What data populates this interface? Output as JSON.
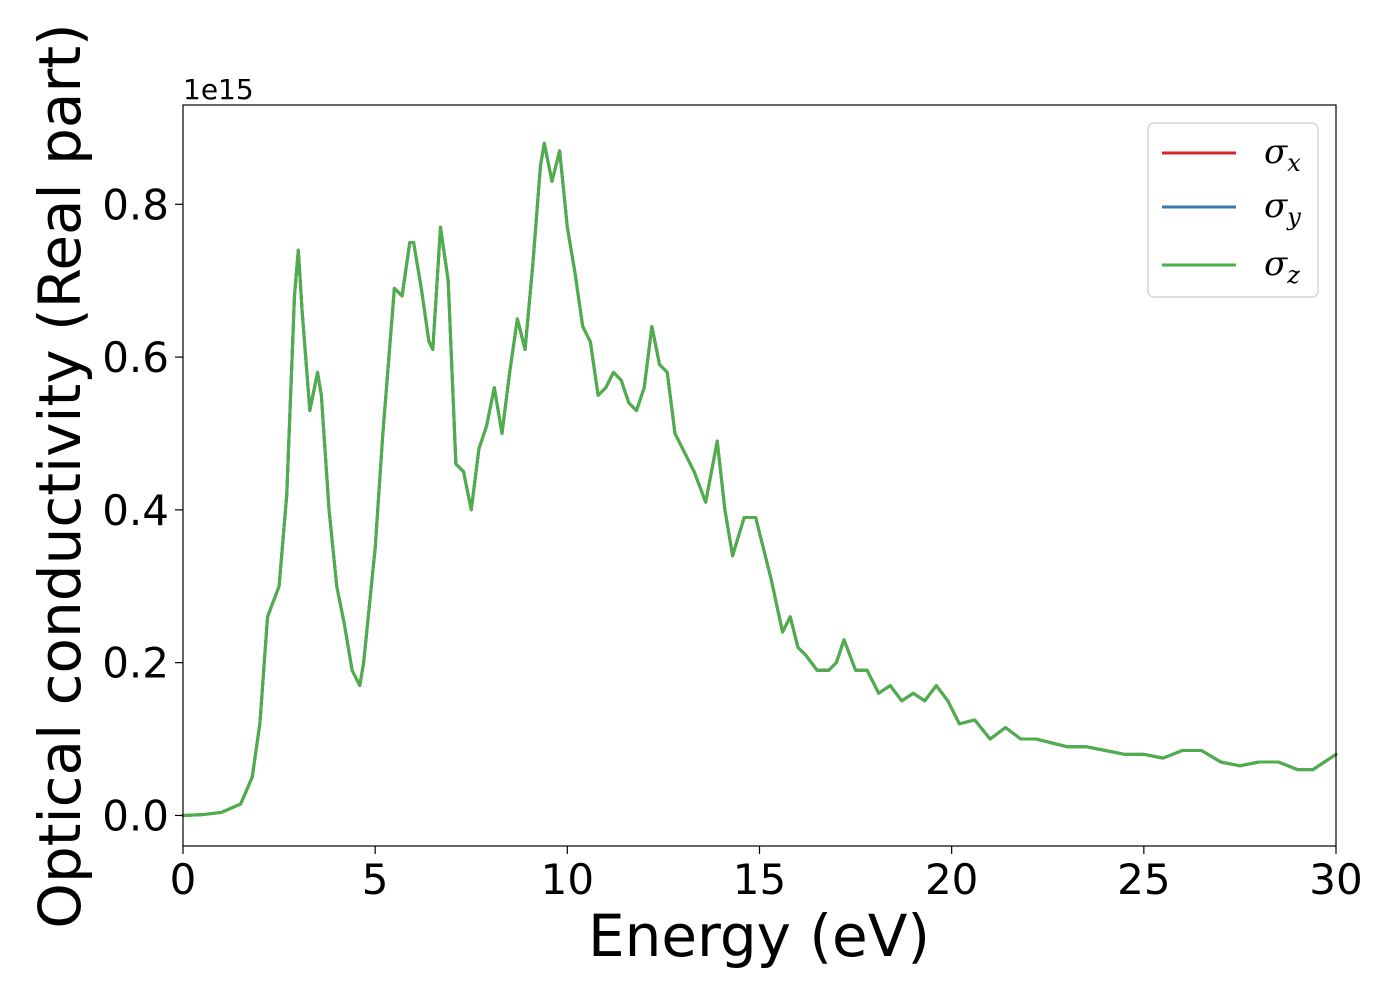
{
  "chart_data": {
    "type": "line",
    "title": "",
    "xlabel": "Energy (eV)",
    "ylabel": "Optical conductivity (Real part)",
    "y_offset_label": "1e15",
    "xlim": [
      0,
      30
    ],
    "ylim": [
      -0.04,
      0.93
    ],
    "y_scale": 1000000000000000.0,
    "x_ticks": [
      0,
      5,
      10,
      15,
      20,
      25,
      30
    ],
    "x_tick_labels": [
      "0",
      "5",
      "10",
      "15",
      "20",
      "25",
      "30"
    ],
    "y_ticks": [
      0.0,
      0.2,
      0.4,
      0.6,
      0.8
    ],
    "y_tick_labels": [
      "0.0",
      "0.2",
      "0.4",
      "0.6",
      "0.8"
    ],
    "grid": false,
    "legend_position": "top-right",
    "colors": {
      "sigma_x": "#d62728",
      "sigma_y": "#3a7bb0",
      "sigma_z": "#4daf4a"
    },
    "x": [
      0,
      0.5,
      1.0,
      1.5,
      1.8,
      2.0,
      2.2,
      2.5,
      2.7,
      2.9,
      3.0,
      3.1,
      3.3,
      3.5,
      3.6,
      3.8,
      4.0,
      4.2,
      4.4,
      4.6,
      4.7,
      5.0,
      5.2,
      5.5,
      5.7,
      5.9,
      6.0,
      6.2,
      6.4,
      6.5,
      6.7,
      6.9,
      7.1,
      7.3,
      7.5,
      7.7,
      7.9,
      8.1,
      8.3,
      8.5,
      8.7,
      8.9,
      9.1,
      9.3,
      9.4,
      9.6,
      9.8,
      10.0,
      10.2,
      10.4,
      10.6,
      10.8,
      11.0,
      11.2,
      11.4,
      11.6,
      11.8,
      12.0,
      12.2,
      12.4,
      12.6,
      12.8,
      13.0,
      13.3,
      13.6,
      13.9,
      14.1,
      14.3,
      14.6,
      14.9,
      15.1,
      15.3,
      15.6,
      15.8,
      16.0,
      16.2,
      16.5,
      16.8,
      17.0,
      17.2,
      17.5,
      17.8,
      18.1,
      18.4,
      18.7,
      19.0,
      19.3,
      19.6,
      19.9,
      20.2,
      20.6,
      21.0,
      21.4,
      21.8,
      22.2,
      22.6,
      23.0,
      23.5,
      24.0,
      24.5,
      25.0,
      25.5,
      26.0,
      26.5,
      27.0,
      27.5,
      28.0,
      28.5,
      29.0,
      29.4,
      29.7,
      30.0
    ],
    "series": [
      {
        "name": "σx",
        "values": [
          0,
          0.001,
          0.004,
          0.015,
          0.05,
          0.12,
          0.26,
          0.3,
          0.42,
          0.68,
          0.74,
          0.66,
          0.53,
          0.58,
          0.55,
          0.4,
          0.3,
          0.25,
          0.19,
          0.17,
          0.2,
          0.35,
          0.5,
          0.69,
          0.68,
          0.75,
          0.75,
          0.69,
          0.62,
          0.61,
          0.77,
          0.7,
          0.46,
          0.45,
          0.4,
          0.48,
          0.51,
          0.56,
          0.5,
          0.58,
          0.65,
          0.61,
          0.72,
          0.85,
          0.88,
          0.83,
          0.87,
          0.77,
          0.71,
          0.64,
          0.62,
          0.55,
          0.56,
          0.58,
          0.57,
          0.54,
          0.53,
          0.56,
          0.64,
          0.59,
          0.58,
          0.5,
          0.48,
          0.45,
          0.41,
          0.49,
          0.4,
          0.34,
          0.39,
          0.39,
          0.35,
          0.31,
          0.24,
          0.26,
          0.22,
          0.21,
          0.19,
          0.19,
          0.2,
          0.23,
          0.19,
          0.19,
          0.16,
          0.17,
          0.15,
          0.16,
          0.15,
          0.17,
          0.15,
          0.12,
          0.125,
          0.1,
          0.115,
          0.1,
          0.1,
          0.095,
          0.09,
          0.09,
          0.085,
          0.08,
          0.08,
          0.075,
          0.085,
          0.085,
          0.07,
          0.065,
          0.07,
          0.07,
          0.06,
          0.06,
          0.07,
          0.08
        ]
      },
      {
        "name": "σy",
        "values": [
          0,
          0.001,
          0.004,
          0.015,
          0.05,
          0.12,
          0.26,
          0.3,
          0.42,
          0.68,
          0.74,
          0.66,
          0.53,
          0.58,
          0.55,
          0.4,
          0.3,
          0.25,
          0.19,
          0.17,
          0.2,
          0.35,
          0.5,
          0.69,
          0.68,
          0.75,
          0.75,
          0.69,
          0.62,
          0.61,
          0.77,
          0.7,
          0.46,
          0.45,
          0.4,
          0.48,
          0.51,
          0.56,
          0.5,
          0.58,
          0.65,
          0.61,
          0.72,
          0.85,
          0.88,
          0.83,
          0.87,
          0.77,
          0.71,
          0.64,
          0.62,
          0.55,
          0.56,
          0.58,
          0.57,
          0.54,
          0.53,
          0.56,
          0.64,
          0.59,
          0.58,
          0.5,
          0.48,
          0.45,
          0.41,
          0.49,
          0.4,
          0.34,
          0.39,
          0.39,
          0.35,
          0.31,
          0.24,
          0.26,
          0.22,
          0.21,
          0.19,
          0.19,
          0.2,
          0.23,
          0.19,
          0.19,
          0.16,
          0.17,
          0.15,
          0.16,
          0.15,
          0.17,
          0.15,
          0.12,
          0.125,
          0.1,
          0.115,
          0.1,
          0.1,
          0.095,
          0.09,
          0.09,
          0.085,
          0.08,
          0.08,
          0.075,
          0.085,
          0.085,
          0.07,
          0.065,
          0.07,
          0.07,
          0.06,
          0.06,
          0.07,
          0.08
        ]
      },
      {
        "name": "σz",
        "values": [
          0,
          0.001,
          0.004,
          0.015,
          0.05,
          0.12,
          0.26,
          0.3,
          0.42,
          0.68,
          0.74,
          0.66,
          0.53,
          0.58,
          0.55,
          0.4,
          0.3,
          0.25,
          0.19,
          0.17,
          0.2,
          0.35,
          0.5,
          0.69,
          0.68,
          0.75,
          0.75,
          0.69,
          0.62,
          0.61,
          0.77,
          0.7,
          0.46,
          0.45,
          0.4,
          0.48,
          0.51,
          0.56,
          0.5,
          0.58,
          0.65,
          0.61,
          0.72,
          0.85,
          0.88,
          0.83,
          0.87,
          0.77,
          0.71,
          0.64,
          0.62,
          0.55,
          0.56,
          0.58,
          0.57,
          0.54,
          0.53,
          0.56,
          0.64,
          0.59,
          0.58,
          0.5,
          0.48,
          0.45,
          0.41,
          0.49,
          0.4,
          0.34,
          0.39,
          0.39,
          0.35,
          0.31,
          0.24,
          0.26,
          0.22,
          0.21,
          0.19,
          0.19,
          0.2,
          0.23,
          0.19,
          0.19,
          0.16,
          0.17,
          0.15,
          0.16,
          0.15,
          0.17,
          0.15,
          0.12,
          0.125,
          0.1,
          0.115,
          0.1,
          0.1,
          0.095,
          0.09,
          0.09,
          0.085,
          0.08,
          0.08,
          0.075,
          0.085,
          0.085,
          0.07,
          0.065,
          0.07,
          0.07,
          0.06,
          0.06,
          0.07,
          0.08
        ]
      }
    ],
    "legend": [
      {
        "symbol": "σ",
        "sub": "x"
      },
      {
        "symbol": "σ",
        "sub": "y"
      },
      {
        "symbol": "σ",
        "sub": "z"
      }
    ]
  }
}
